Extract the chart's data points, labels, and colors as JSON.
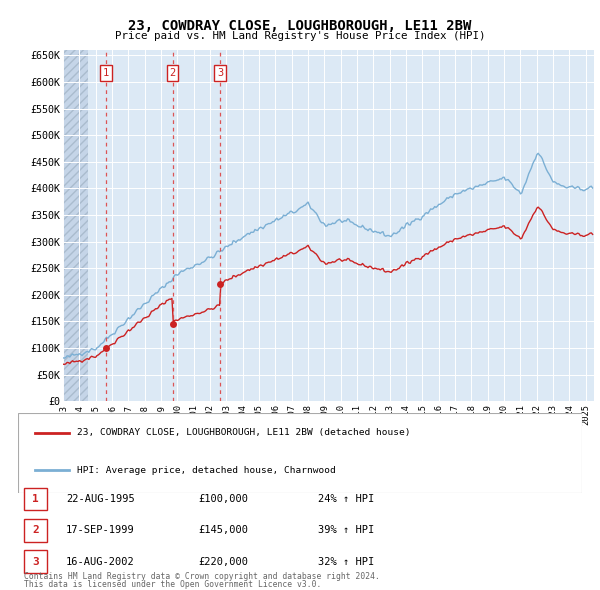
{
  "title": "23, COWDRAY CLOSE, LOUGHBOROUGH, LE11 2BW",
  "subtitle": "Price paid vs. HM Land Registry's House Price Index (HPI)",
  "legend_line1": "23, COWDRAY CLOSE, LOUGHBOROUGH, LE11 2BW (detached house)",
  "legend_line2": "HPI: Average price, detached house, Charnwood",
  "footer1": "Contains HM Land Registry data © Crown copyright and database right 2024.",
  "footer2": "This data is licensed under the Open Government Licence v3.0.",
  "table_rows": [
    {
      "num": "1",
      "date": "22-AUG-1995",
      "price": "£100,000",
      "hpi": "24% ↑ HPI"
    },
    {
      "num": "2",
      "date": "17-SEP-1999",
      "price": "£145,000",
      "hpi": "39% ↑ HPI"
    },
    {
      "num": "3",
      "date": "16-AUG-2002",
      "price": "£220,000",
      "hpi": "32% ↑ HPI"
    }
  ],
  "trans_years": [
    1995.622,
    1999.706,
    2002.622
  ],
  "trans_prices": [
    100000,
    145000,
    220000
  ],
  "hpi_color": "#7bafd4",
  "price_color": "#cc2222",
  "dot_color": "#cc2222",
  "dashed_color": "#dd4444",
  "background_chart": "#dce9f5",
  "background_hatch": "#c5d5e8",
  "grid_color": "#ffffff",
  "ylim": [
    0,
    660000
  ],
  "yticks": [
    0,
    50000,
    100000,
    150000,
    200000,
    250000,
    300000,
    350000,
    400000,
    450000,
    500000,
    550000,
    600000,
    650000
  ],
  "xlim_start": 1993.0,
  "xlim_end": 2025.5,
  "hatch_end": 1994.5
}
